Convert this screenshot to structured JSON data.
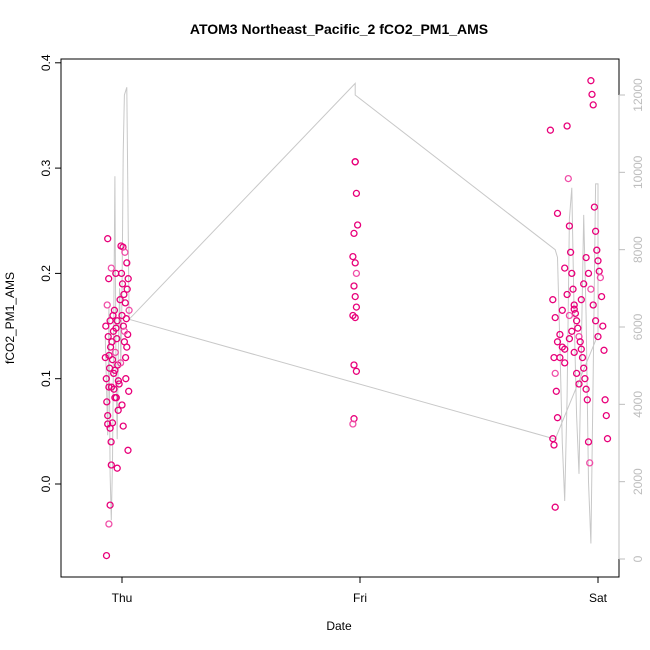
{
  "chart_data": {
    "type": "scatter",
    "title": "ATOM3 Northeast_Pacific_2 fCO2_PM1_AMS",
    "xlabel": "Date",
    "ylabel": "fCO2_PM1_AMS",
    "x_ticks": [
      "Thu",
      "Fri",
      "Sat"
    ],
    "ylim": [
      -0.085,
      0.405
    ],
    "y_ticks": [
      "0.0",
      "0.1",
      "0.2",
      "0.3",
      "0.4"
    ],
    "y2lim": [
      -200,
      12800
    ],
    "y2_ticks": [
      "0",
      "2000",
      "4000",
      "6000",
      "8000",
      "10000",
      "12000"
    ],
    "grid": false,
    "colors": {
      "points": "#e8007a",
      "points_light": "#f04fa8",
      "altitude_line": "#c8c8c8"
    },
    "series": [
      {
        "values": [
          [
            -0.07,
            0.12
          ],
          [
            -0.068,
            0.15
          ],
          [
            -0.066,
            0.1
          ],
          [
            -0.064,
            0.078
          ],
          [
            -0.062,
            0.17
          ],
          [
            -0.06,
            0.065
          ],
          [
            -0.058,
            0.14
          ],
          [
            -0.056,
            0.195
          ],
          [
            -0.054,
            0.122
          ],
          [
            -0.052,
            0.11
          ],
          [
            -0.05,
            0.155
          ],
          [
            -0.048,
            0.13
          ],
          [
            -0.046,
            0.04
          ],
          [
            -0.045,
            0.205
          ],
          [
            -0.044,
            0.092
          ],
          [
            -0.042,
            0.135
          ],
          [
            -0.04,
            0.118
          ],
          [
            -0.038,
            0.16
          ],
          [
            -0.036,
            0.145
          ],
          [
            -0.034,
            0.09
          ],
          [
            -0.032,
            0.165
          ],
          [
            -0.03,
            0.108
          ],
          [
            -0.028,
            0.125
          ],
          [
            -0.026,
            0.2
          ],
          [
            -0.024,
            0.082
          ],
          [
            -0.022,
            0.138
          ],
          [
            -0.02,
            0.155
          ],
          [
            -0.018,
            0.113
          ],
          [
            -0.016,
            0.07
          ],
          [
            -0.012,
            0.095
          ],
          [
            -0.008,
            0.175
          ],
          [
            -0.006,
            0.115
          ],
          [
            -0.004,
            0.226
          ],
          [
            -0.002,
            0.2
          ],
          [
            0.0,
            0.16
          ],
          [
            0.002,
            0.19
          ],
          [
            0.004,
            0.225
          ],
          [
            0.006,
            0.15
          ],
          [
            0.008,
            0.18
          ],
          [
            0.01,
            0.135
          ],
          [
            0.012,
            0.22
          ],
          [
            0.014,
            0.172
          ],
          [
            0.016,
            0.1
          ],
          [
            0.018,
            0.157
          ],
          [
            0.02,
            0.21
          ],
          [
            0.022,
            0.185
          ],
          [
            0.024,
            0.142
          ],
          [
            0.026,
            0.195
          ],
          [
            0.028,
            0.088
          ],
          [
            0.03,
            0.165
          ],
          [
            -0.06,
            0.057
          ],
          [
            -0.05,
            0.053
          ],
          [
            -0.045,
            0.018
          ],
          [
            -0.04,
            0.058
          ],
          [
            -0.03,
            0.082
          ],
          [
            -0.02,
            0.015
          ],
          [
            0.0,
            0.075
          ],
          [
            0.005,
            0.055
          ],
          [
            0.01,
            0.145
          ],
          [
            0.02,
            0.13
          ],
          [
            -0.055,
            0.092
          ],
          [
            -0.035,
            0.105
          ],
          [
            -0.025,
            0.148
          ],
          [
            -0.015,
            0.098
          ],
          [
            0.015,
            0.12
          ],
          [
            0.025,
            0.032
          ],
          [
            -0.065,
            -0.068
          ],
          [
            -0.055,
            -0.038
          ],
          [
            -0.05,
            -0.02
          ],
          [
            -0.06,
            0.233
          ],
          [
            0.98,
            0.306
          ],
          [
            0.985,
            0.276
          ],
          [
            0.99,
            0.246
          ],
          [
            0.975,
            0.238
          ],
          [
            0.97,
            0.216
          ],
          [
            0.98,
            0.21
          ],
          [
            0.985,
            0.2
          ],
          [
            0.975,
            0.188
          ],
          [
            0.98,
            0.178
          ],
          [
            0.985,
            0.168
          ],
          [
            0.97,
            0.16
          ],
          [
            0.98,
            0.158
          ],
          [
            0.975,
            0.113
          ],
          [
            0.985,
            0.107
          ],
          [
            0.975,
            0.062
          ],
          [
            0.97,
            0.057
          ],
          [
            0.98,
            0.306
          ],
          [
            1.8,
            0.336
          ],
          [
            1.82,
            0.158
          ],
          [
            1.83,
            0.257
          ],
          [
            1.84,
            0.142
          ],
          [
            1.85,
            0.13
          ],
          [
            1.81,
            0.175
          ],
          [
            1.815,
            0.12
          ],
          [
            1.82,
            0.105
          ],
          [
            1.825,
            0.088
          ],
          [
            1.83,
            0.063
          ],
          [
            1.81,
            0.043
          ],
          [
            1.815,
            0.037
          ],
          [
            1.82,
            -0.022
          ],
          [
            1.85,
            0.165
          ],
          [
            1.86,
            0.115
          ],
          [
            1.87,
            0.34
          ],
          [
            1.875,
            0.29
          ],
          [
            1.88,
            0.245
          ],
          [
            1.885,
            0.22
          ],
          [
            1.89,
            0.2
          ],
          [
            1.895,
            0.185
          ],
          [
            1.9,
            0.17
          ],
          [
            1.905,
            0.162
          ],
          [
            1.91,
            0.155
          ],
          [
            1.915,
            0.148
          ],
          [
            1.92,
            0.14
          ],
          [
            1.925,
            0.135
          ],
          [
            1.93,
            0.128
          ],
          [
            1.935,
            0.12
          ],
          [
            1.94,
            0.11
          ],
          [
            1.945,
            0.1
          ],
          [
            1.95,
            0.09
          ],
          [
            1.955,
            0.08
          ],
          [
            1.96,
            0.04
          ],
          [
            1.965,
            0.02
          ],
          [
            1.97,
            0.383
          ],
          [
            1.975,
            0.37
          ],
          [
            1.98,
            0.36
          ],
          [
            1.985,
            0.263
          ],
          [
            1.99,
            0.24
          ],
          [
            1.995,
            0.222
          ],
          [
            2.0,
            0.212
          ],
          [
            2.005,
            0.202
          ],
          [
            2.01,
            0.196
          ],
          [
            2.015,
            0.178
          ],
          [
            2.02,
            0.15
          ],
          [
            2.025,
            0.127
          ],
          [
            2.03,
            0.08
          ],
          [
            2.035,
            0.065
          ],
          [
            2.04,
            0.043
          ],
          [
            1.86,
            0.205
          ],
          [
            1.87,
            0.18
          ],
          [
            1.88,
            0.16
          ],
          [
            1.89,
            0.145
          ],
          [
            1.9,
            0.125
          ],
          [
            1.91,
            0.105
          ],
          [
            1.92,
            0.095
          ],
          [
            1.93,
            0.175
          ],
          [
            1.94,
            0.19
          ],
          [
            1.95,
            0.215
          ],
          [
            1.96,
            0.2
          ],
          [
            1.97,
            0.185
          ],
          [
            1.98,
            0.17
          ],
          [
            1.99,
            0.155
          ],
          [
            2.0,
            0.14
          ],
          [
            1.83,
            0.135
          ],
          [
            1.84,
            0.12
          ],
          [
            1.86,
            0.128
          ],
          [
            1.88,
            0.138
          ],
          [
            1.9,
            0.166
          ]
        ]
      }
    ],
    "altitude_line": {
      "axis": "right",
      "values": [
        [
          -0.07,
          5700
        ],
        [
          -0.065,
          4500
        ],
        [
          -0.06,
          3200
        ],
        [
          -0.055,
          6500
        ],
        [
          -0.05,
          2200
        ],
        [
          -0.045,
          1000
        ],
        [
          -0.04,
          2500
        ],
        [
          -0.035,
          6000
        ],
        [
          -0.03,
          9900
        ],
        [
          -0.025,
          4800
        ],
        [
          -0.02,
          3100
        ],
        [
          -0.015,
          5500
        ],
        [
          -0.01,
          7000
        ],
        [
          -0.005,
          5000
        ],
        [
          0.0,
          6800
        ],
        [
          0.005,
          10500
        ],
        [
          0.01,
          12000
        ],
        [
          0.02,
          12200
        ],
        [
          0.03,
          6200
        ],
        [
          0.98,
          12300
        ],
        [
          0.98,
          12000
        ],
        [
          1.82,
          8000
        ],
        [
          1.83,
          7800
        ],
        [
          1.84,
          5500
        ],
        [
          1.85,
          3000
        ],
        [
          1.86,
          1500
        ],
        [
          1.87,
          4200
        ],
        [
          1.88,
          8800
        ],
        [
          1.89,
          9600
        ],
        [
          1.9,
          6200
        ],
        [
          1.91,
          3700
        ],
        [
          1.92,
          2200
        ],
        [
          1.93,
          5400
        ],
        [
          1.94,
          8900
        ],
        [
          1.95,
          6300
        ],
        [
          1.96,
          2000
        ],
        [
          1.97,
          400
        ],
        [
          1.98,
          4800
        ],
        [
          1.99,
          9700
        ],
        [
          2.0,
          9700
        ],
        [
          2.0,
          5800
        ],
        [
          1.82,
          3100
        ],
        [
          0.03,
          6200
        ]
      ]
    }
  }
}
